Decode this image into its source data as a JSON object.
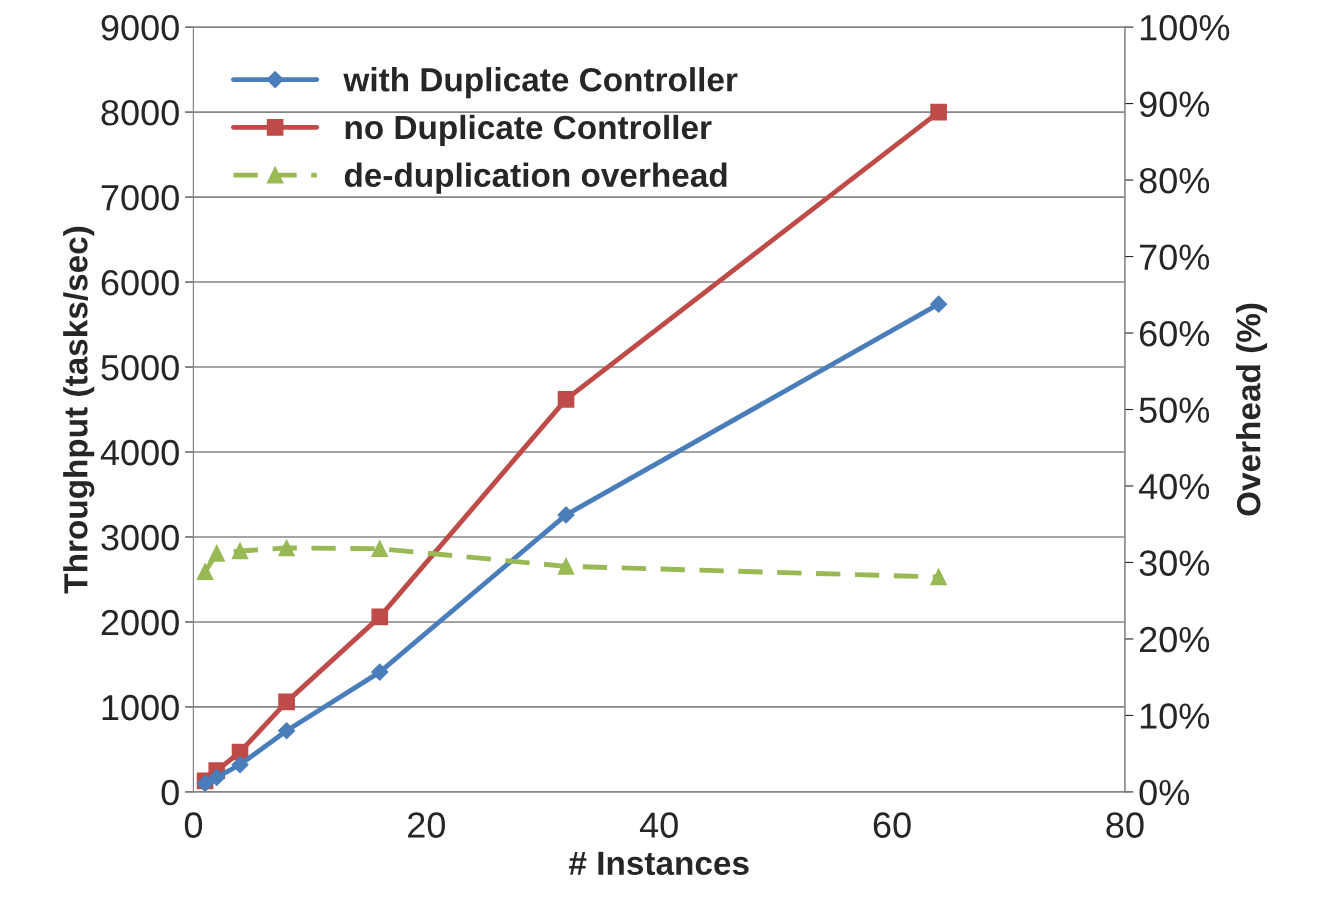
{
  "chart_data": {
    "type": "line",
    "xlabel": "# Instances",
    "ylabel": "Throughput (tasks/sec)",
    "y2label": "Overhead (%)",
    "x": [
      1,
      2,
      4,
      8,
      16,
      32,
      64
    ],
    "series": [
      {
        "name": "with Duplicate Controller",
        "color": "#4a7ebb",
        "marker": "diamond",
        "line_style": "solid",
        "values": [
          100,
          170,
          320,
          720,
          1410,
          3260,
          5740
        ]
      },
      {
        "name": "no Duplicate Controller",
        "color": "#be4b48",
        "marker": "square",
        "line_style": "solid",
        "values": [
          130,
          250,
          470,
          1060,
          2060,
          4620,
          8000
        ]
      },
      {
        "name": "de-duplication overhead",
        "color": "#98b954",
        "marker": "triangle",
        "line_style": "dashed",
        "axis": "y2",
        "values": [
          28.8,
          31.2,
          31.5,
          31.9,
          31.8,
          29.5,
          28.1
        ]
      }
    ],
    "xlim": [
      0,
      80
    ],
    "xticks": [
      0,
      20,
      40,
      60,
      80
    ],
    "ylim": [
      0,
      9000
    ],
    "yticks": [
      0,
      1000,
      2000,
      3000,
      4000,
      5000,
      6000,
      7000,
      8000,
      9000
    ],
    "y2lim": [
      0,
      100
    ],
    "y2ticks": [
      {
        "value": 0,
        "label": "0%"
      },
      {
        "value": 10,
        "label": "10%"
      },
      {
        "value": 20,
        "label": "20%"
      },
      {
        "value": 30,
        "label": "30%"
      },
      {
        "value": 40,
        "label": "40%"
      },
      {
        "value": 50,
        "label": "50%"
      },
      {
        "value": 60,
        "label": "60%"
      },
      {
        "value": 70,
        "label": "70%"
      },
      {
        "value": 80,
        "label": "80%"
      },
      {
        "value": 90,
        "label": "90%"
      },
      {
        "value": 100,
        "label": "100%"
      }
    ],
    "grid": "y",
    "legend": "top left"
  }
}
